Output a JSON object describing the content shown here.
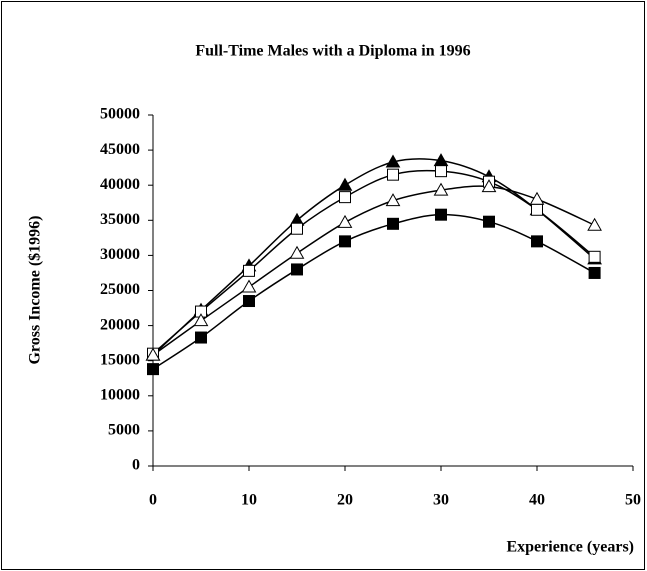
{
  "chart_data": {
    "type": "line",
    "title": "Full-Time Males with a Diploma in 1996",
    "x_label": "Experience (years)",
    "y_label": "Gross Income ($1996)",
    "x": [
      0,
      5,
      10,
      15,
      20,
      25,
      30,
      35,
      40,
      46
    ],
    "series": [
      {
        "color": "#000000",
        "marker": "triangle",
        "filled": true,
        "values": [
          15800,
          22200,
          28500,
          35000,
          40000,
          43300,
          43500,
          41200,
          36500,
          29500
        ]
      },
      {
        "color": "#000000",
        "marker": "square",
        "filled": false,
        "values": [
          16000,
          22000,
          27800,
          33800,
          38300,
          41500,
          42000,
          40500,
          36500,
          29800
        ]
      },
      {
        "color": "#000000",
        "marker": "triangle",
        "filled": false,
        "values": [
          15800,
          20700,
          25500,
          30300,
          34700,
          37800,
          39300,
          39800,
          38000,
          34300
        ]
      },
      {
        "color": "#000000",
        "marker": "square",
        "filled": true,
        "values": [
          13800,
          18300,
          23500,
          28000,
          32000,
          34500,
          35800,
          34800,
          32000,
          27500
        ]
      }
    ],
    "xlim": [
      0,
      50
    ],
    "xticks": [
      0,
      10,
      20,
      30,
      40,
      50
    ],
    "ylim": [
      0,
      50000
    ],
    "yticks": [
      0,
      5000,
      10000,
      15000,
      20000,
      25000,
      30000,
      35000,
      40000,
      45000,
      50000
    ],
    "grid": false,
    "smooth": true
  }
}
